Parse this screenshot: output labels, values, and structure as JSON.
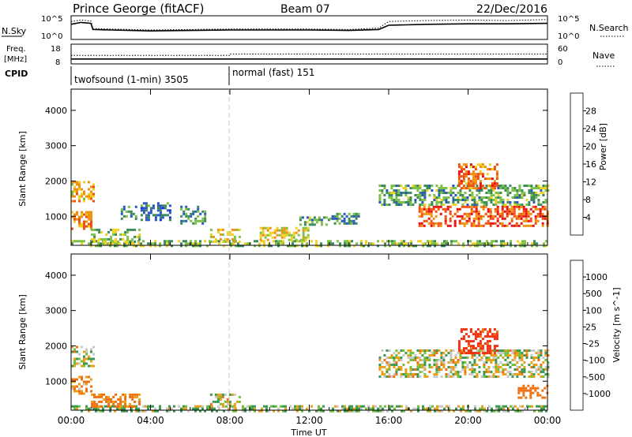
{
  "header": {
    "site": "Prince George (fitACF)",
    "beam": "Beam 07",
    "date": "22/Dec/2016"
  },
  "noise_panel": {
    "left_label": "N.Sky",
    "left_ticks": [
      "10^5",
      "10^0"
    ],
    "right_label": "N.Search",
    "right_ticks": [
      "10^5",
      "10^0"
    ]
  },
  "freq_panel": {
    "left_label_1": "Freq.",
    "left_label_2": "[MHz]",
    "left_ticks": [
      "18",
      "8"
    ],
    "right_label": "Nave",
    "right_ticks": [
      "60",
      "0"
    ]
  },
  "cpid_panel": {
    "label": "CPID",
    "modes": [
      {
        "name": "twofsound (1-min)",
        "id": "3505"
      },
      {
        "name": "normal (fast)",
        "id": "151"
      }
    ]
  },
  "time_axis": {
    "ticks": [
      "00:00",
      "04:00",
      "08:00",
      "12:00",
      "16:00",
      "20:00",
      "00:00"
    ],
    "label": "Time UT"
  },
  "chart_data": [
    {
      "type": "line",
      "title": "N.Sky / N.Search",
      "x_units": "hours UT",
      "x": [
        0,
        0.5,
        1,
        1.1,
        2,
        4,
        6,
        8,
        10,
        12,
        14,
        15.5,
        16,
        18,
        20,
        22,
        24
      ],
      "series": [
        {
          "name": "N.Sky",
          "values_log10": [
            3.2,
            3.6,
            3.4,
            2.1,
            2.0,
            1.8,
            1.9,
            2.0,
            2.0,
            2.0,
            1.9,
            2.1,
            3.0,
            3.2,
            3.3,
            3.3,
            3.4
          ]
        },
        {
          "name": "N.Search",
          "values_log10": [
            3.8,
            4.1,
            3.9,
            2.3,
            2.2,
            2.0,
            2.1,
            2.2,
            2.2,
            2.2,
            2.1,
            2.4,
            3.8,
            4.0,
            4.1,
            4.0,
            4.2
          ]
        }
      ],
      "ylim_log10": [
        0,
        5
      ]
    },
    {
      "type": "line",
      "title": "Freq. / Nave",
      "x_units": "hours UT",
      "x": [
        0,
        8,
        8,
        24
      ],
      "series": [
        {
          "name": "Freq.",
          "values": [
            10.5,
            10.5,
            10.5,
            10.5
          ]
        },
        {
          "name": "Nave",
          "values": [
            26,
            26,
            30,
            30
          ]
        }
      ],
      "ylim_freq": [
        8,
        18
      ],
      "ylim_nave": [
        0,
        60
      ]
    },
    {
      "type": "heatmap",
      "title": "Power",
      "xlabel": "",
      "ylabel": "Slant Range [km]",
      "xlim": [
        0,
        24
      ],
      "ylim": [
        180,
        4600
      ],
      "yticks": [
        1000,
        2000,
        3000,
        4000
      ],
      "colorbar": {
        "label": "Power [dB]",
        "ticks": [
          4,
          8,
          12,
          16,
          20,
          24,
          28
        ],
        "range": [
          0,
          32
        ],
        "colors": [
          "#1030e0",
          "#2a56c0",
          "#3a8a5a",
          "#7cc046",
          "#f0d020",
          "#f09010",
          "#f05010",
          "#e81010"
        ]
      },
      "regions": [
        {
          "t0": 0.0,
          "t1": 24.0,
          "r0": 180,
          "r1": 330,
          "level": 14
        },
        {
          "t0": 0.0,
          "t1": 1.1,
          "r0": 1450,
          "r1": 2000,
          "level": 20
        },
        {
          "t0": 0.0,
          "t1": 1.0,
          "r0": 650,
          "r1": 1150,
          "level": 22
        },
        {
          "t0": 1.0,
          "t1": 3.5,
          "r0": 250,
          "r1": 650,
          "level": 14
        },
        {
          "t0": 2.5,
          "t1": 3.3,
          "r0": 900,
          "r1": 1300,
          "level": 10
        },
        {
          "t0": 3.5,
          "t1": 5.0,
          "r0": 900,
          "r1": 1400,
          "level": 8
        },
        {
          "t0": 5.5,
          "t1": 6.8,
          "r0": 800,
          "r1": 1300,
          "level": 10
        },
        {
          "t0": 7.0,
          "t1": 8.5,
          "r0": 300,
          "r1": 650,
          "level": 18
        },
        {
          "t0": 9.5,
          "t1": 12.0,
          "r0": 350,
          "r1": 700,
          "level": 18
        },
        {
          "t0": 11.5,
          "t1": 13.0,
          "r0": 750,
          "r1": 1000,
          "level": 12
        },
        {
          "t0": 13.0,
          "t1": 14.5,
          "r0": 800,
          "r1": 1100,
          "level": 10
        },
        {
          "t0": 17.5,
          "t1": 24.0,
          "r0": 700,
          "r1": 1300,
          "level": 26
        },
        {
          "t0": 15.5,
          "t1": 24.0,
          "r0": 1300,
          "r1": 1900,
          "level": 12
        },
        {
          "t0": 19.5,
          "t1": 21.5,
          "r0": 1800,
          "r1": 2500,
          "level": 24
        }
      ]
    },
    {
      "type": "heatmap",
      "title": "Velocity",
      "xlabel": "Time UT",
      "ylabel": "Slant Range [km]",
      "xlim": [
        0,
        24
      ],
      "ylim": [
        180,
        4600
      ],
      "yticks": [
        1000,
        2000,
        3000,
        4000
      ],
      "colorbar": {
        "label": "Velocity [m s^-1]",
        "ticks": [
          1000,
          500,
          100,
          25,
          -25,
          -100,
          -500,
          -1000
        ],
        "range": [
          -1200,
          1200
        ],
        "colors": [
          "#1430c0",
          "#2a6ea0",
          "#3a9a50",
          "#70c038",
          "#c8c8c8",
          "#e8a018",
          "#f07010",
          "#f03010",
          "#e00000"
        ]
      },
      "regions": [
        {
          "t0": 0.0,
          "t1": 24.0,
          "r0": 180,
          "r1": 320,
          "vel": 50
        },
        {
          "t0": 0.0,
          "t1": 1.1,
          "r0": 1450,
          "r1": 2000,
          "vel": 0
        },
        {
          "t0": 0.0,
          "t1": 1.0,
          "r0": 650,
          "r1": 1150,
          "vel": -120
        },
        {
          "t0": 1.0,
          "t1": 3.5,
          "r0": 250,
          "r1": 650,
          "vel": -150
        },
        {
          "t0": 7.0,
          "t1": 8.5,
          "r0": 300,
          "r1": 650,
          "vel": 0
        },
        {
          "t0": 15.5,
          "t1": 24.0,
          "r0": 1100,
          "r1": 1900,
          "vel": 0
        },
        {
          "t0": 19.5,
          "t1": 21.5,
          "r0": 1800,
          "r1": 2500,
          "vel": -600
        },
        {
          "t0": 22.5,
          "t1": 24.0,
          "r0": 500,
          "r1": 900,
          "vel": -300
        }
      ]
    }
  ]
}
